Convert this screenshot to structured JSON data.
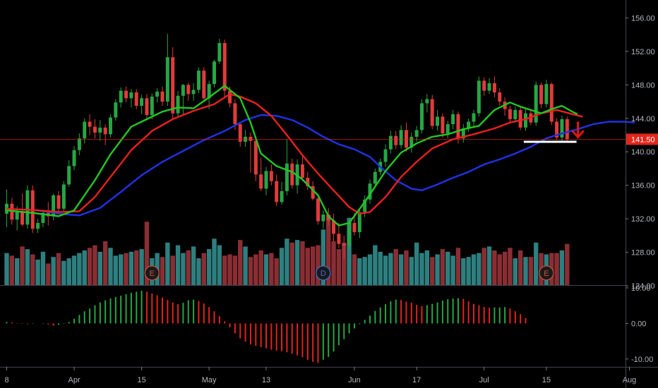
{
  "chart_data": {
    "type": "candlestick",
    "price_axis": {
      "ticks": [
        156,
        152,
        148,
        144,
        140,
        136,
        132,
        128,
        124
      ],
      "tick_labels": [
        "156.00",
        "152.00",
        "148.00",
        "144.00",
        "140.00",
        "136.00",
        "132.00",
        "128.00",
        "124.00"
      ],
      "ylim": [
        124,
        157.3
      ]
    },
    "last_price": {
      "value": 141.5,
      "label": "141.50",
      "color": "#e3261b"
    },
    "oscillator_axis": {
      "ticks": [
        10,
        0,
        -10
      ],
      "tick_labels": [
        "10.00",
        "0.00",
        "-10.00"
      ],
      "ylim": [
        -12.2,
        10.6
      ]
    },
    "x_axis": {
      "labels": [
        "8",
        "Apr",
        "15",
        "May",
        "13",
        "Jun",
        "17",
        "Jul",
        "15",
        "Aug"
      ],
      "label_bar_index": [
        0,
        13,
        26,
        39,
        50,
        67,
        79,
        92,
        104,
        120
      ]
    },
    "grid": false,
    "colors": {
      "up": "#26a643",
      "down": "#e03b3b",
      "vol_up": "#2e7f7f",
      "vol_down": "#8a2e34",
      "ma_fast": "#22c822",
      "ma_mid": "#ee1f1f",
      "ma_slow": "#1f33e6",
      "hist_up": "#26a643",
      "hist_down": "#e3221b",
      "arrow": "#e31717",
      "level_line": "#ffffff"
    },
    "ohlc": [
      [
        132.6,
        135.5,
        131.0,
        133.8
      ],
      [
        133.8,
        134.5,
        131.3,
        131.9
      ],
      [
        131.9,
        133.5,
        130.6,
        132.8
      ],
      [
        132.8,
        135.0,
        131.1,
        131.3
      ],
      [
        131.3,
        136.0,
        130.8,
        135.4
      ],
      [
        135.4,
        136.0,
        130.3,
        130.8
      ],
      [
        130.8,
        132.0,
        130.3,
        131.5
      ],
      [
        131.5,
        133.0,
        131.0,
        132.7
      ],
      [
        132.7,
        134.0,
        131.2,
        132.3
      ],
      [
        132.3,
        135.0,
        131.8,
        134.8
      ],
      [
        134.8,
        135.3,
        132.8,
        133.2
      ],
      [
        133.2,
        136.5,
        132.8,
        136.1
      ],
      [
        136.1,
        139.0,
        135.8,
        138.3
      ],
      [
        138.3,
        140.7,
        137.8,
        140.2
      ],
      [
        140.2,
        142.2,
        139.6,
        141.6
      ],
      [
        141.6,
        144.0,
        141.0,
        143.6
      ],
      [
        143.6,
        144.5,
        142.0,
        143.0
      ],
      [
        143.0,
        143.9,
        141.6,
        142.3
      ],
      [
        142.3,
        143.8,
        141.3,
        142.9
      ],
      [
        142.9,
        143.3,
        140.8,
        142.1
      ],
      [
        142.1,
        144.5,
        141.7,
        144.1
      ],
      [
        144.1,
        146.3,
        143.7,
        145.9
      ],
      [
        145.9,
        147.7,
        145.3,
        147.3
      ],
      [
        147.3,
        147.8,
        145.9,
        146.4
      ],
      [
        146.4,
        147.5,
        145.3,
        147.1
      ],
      [
        147.1,
        147.5,
        145.1,
        145.5
      ],
      [
        145.5,
        146.8,
        144.5,
        146.4
      ],
      [
        146.4,
        146.9,
        144.0,
        144.4
      ],
      [
        144.4,
        147.0,
        143.9,
        146.6
      ],
      [
        146.6,
        147.6,
        145.9,
        147.2
      ],
      [
        147.2,
        147.8,
        145.5,
        146.0
      ],
      [
        146.0,
        154.1,
        145.5,
        151.3
      ],
      [
        151.3,
        152.5,
        144.0,
        144.6
      ],
      [
        144.6,
        147.3,
        144.1,
        146.7
      ],
      [
        146.7,
        148.1,
        144.3,
        148.0
      ],
      [
        148.0,
        148.3,
        146.1,
        146.9
      ],
      [
        146.9,
        148.2,
        146.1,
        147.4
      ],
      [
        147.4,
        150.1,
        147.0,
        149.7
      ],
      [
        149.7,
        150.1,
        146.0,
        146.4
      ],
      [
        146.4,
        148.5,
        145.1,
        148.1
      ],
      [
        148.1,
        151.0,
        147.7,
        150.8
      ],
      [
        150.8,
        153.5,
        150.5,
        153.0
      ],
      [
        153.0,
        153.4,
        146.6,
        147.3
      ],
      [
        147.3,
        147.8,
        145.3,
        145.8
      ],
      [
        145.8,
        146.3,
        142.6,
        143.3
      ],
      [
        143.3,
        143.5,
        140.6,
        141.2
      ],
      [
        141.2,
        142.6,
        140.6,
        141.8
      ],
      [
        141.8,
        142.3,
        137.5,
        141.3
      ],
      [
        141.3,
        141.6,
        136.5,
        137.3
      ],
      [
        137.3,
        139.3,
        135.3,
        135.6
      ],
      [
        135.6,
        138.2,
        134.8,
        137.7
      ],
      [
        137.7,
        138.5,
        136.0,
        136.5
      ],
      [
        136.5,
        137.3,
        133.5,
        134.0
      ],
      [
        134.0,
        136.4,
        133.7,
        135.3
      ],
      [
        135.3,
        141.5,
        134.8,
        138.6
      ],
      [
        138.6,
        139.2,
        135.6,
        136.0
      ],
      [
        136.0,
        139.1,
        135.0,
        138.5
      ],
      [
        138.5,
        139.5,
        136.5,
        136.9
      ],
      [
        136.9,
        137.6,
        135.4,
        135.9
      ],
      [
        135.9,
        136.5,
        134.2,
        134.4
      ],
      [
        134.4,
        135.0,
        131.3,
        131.7
      ],
      [
        131.7,
        133.0,
        130.8,
        132.5
      ],
      [
        132.5,
        133.3,
        131.2,
        131.8
      ],
      [
        131.8,
        132.6,
        129.3,
        130.2
      ],
      [
        130.2,
        131.5,
        128.5,
        129.0
      ],
      [
        129.0,
        130.0,
        127.2,
        128.8
      ],
      [
        128.8,
        132.0,
        128.3,
        131.5
      ],
      [
        131.5,
        132.7,
        130.0,
        130.4
      ],
      [
        130.4,
        133.2,
        129.7,
        132.8
      ],
      [
        132.8,
        134.8,
        132.2,
        134.3
      ],
      [
        134.3,
        136.7,
        133.8,
        136.2
      ],
      [
        136.2,
        138.0,
        135.8,
        137.6
      ],
      [
        137.6,
        139.2,
        137.2,
        138.8
      ],
      [
        138.8,
        140.9,
        138.2,
        140.3
      ],
      [
        140.3,
        142.5,
        139.8,
        141.9
      ],
      [
        141.9,
        142.5,
        140.3,
        140.8
      ],
      [
        140.8,
        143.2,
        140.4,
        142.6
      ],
      [
        142.6,
        143.5,
        140.0,
        140.5
      ],
      [
        140.5,
        142.3,
        139.9,
        141.8
      ],
      [
        141.8,
        143.1,
        141.2,
        142.6
      ],
      [
        142.6,
        146.3,
        142.2,
        145.8
      ],
      [
        145.8,
        146.9,
        144.7,
        146.3
      ],
      [
        146.3,
        146.8,
        142.7,
        143.1
      ],
      [
        143.1,
        145.0,
        142.5,
        144.2
      ],
      [
        144.2,
        144.6,
        141.7,
        142.2
      ],
      [
        142.2,
        143.7,
        141.6,
        143.3
      ],
      [
        143.3,
        145.0,
        142.7,
        144.5
      ],
      [
        144.5,
        144.8,
        141.0,
        141.6
      ],
      [
        141.6,
        143.3,
        141.1,
        142.8
      ],
      [
        142.8,
        144.0,
        142.4,
        143.6
      ],
      [
        143.6,
        145.0,
        143.0,
        144.6
      ],
      [
        144.6,
        149.0,
        144.2,
        148.5
      ],
      [
        148.5,
        148.9,
        146.7,
        147.3
      ],
      [
        147.3,
        148.8,
        146.9,
        148.2
      ],
      [
        148.2,
        149.0,
        146.5,
        147.1
      ],
      [
        147.1,
        147.6,
        145.5,
        146.0
      ],
      [
        146.0,
        146.5,
        144.3,
        145.1
      ],
      [
        145.1,
        145.5,
        143.6,
        143.9
      ],
      [
        143.9,
        145.4,
        143.5,
        145.0
      ],
      [
        145.0,
        145.4,
        142.6,
        142.9
      ],
      [
        142.9,
        145.1,
        142.5,
        144.6
      ],
      [
        144.6,
        145.0,
        143.2,
        143.5
      ],
      [
        143.5,
        148.4,
        143.1,
        148.0
      ],
      [
        148.0,
        148.3,
        145.2,
        145.7
      ],
      [
        145.7,
        148.6,
        145.3,
        148.1
      ],
      [
        148.1,
        148.3,
        143.2,
        143.6
      ],
      [
        143.6,
        144.0,
        141.4,
        141.7
      ],
      [
        141.7,
        144.3,
        141.3,
        143.9
      ],
      [
        143.9,
        144.2,
        141.1,
        141.5
      ]
    ],
    "volume": [
      25,
      23,
      21,
      30,
      28,
      24,
      20,
      26,
      17,
      22,
      25,
      19,
      21,
      23,
      25,
      27,
      29,
      31,
      26,
      34,
      29,
      23,
      24,
      25,
      26,
      27,
      28,
      49,
      21,
      25,
      22,
      33,
      23,
      31,
      25,
      27,
      30,
      21,
      25,
      28,
      36,
      31,
      23,
      24,
      23,
      35,
      30,
      22,
      24,
      27,
      24,
      25,
      21,
      29,
      36,
      33,
      35,
      34,
      29,
      30,
      31,
      43,
      54,
      34,
      28,
      33,
      52,
      24,
      21,
      22,
      24,
      31,
      26,
      23,
      25,
      28,
      24,
      27,
      22,
      33,
      25,
      27,
      22,
      24,
      28,
      26,
      23,
      29,
      21,
      22,
      24,
      25,
      29,
      30,
      27,
      24,
      26,
      29,
      21,
      27,
      22,
      22,
      33,
      25,
      24,
      25,
      25,
      27,
      32
    ],
    "ma_fast": [
      [
        0,
        133.0
      ],
      [
        5,
        132.7
      ],
      [
        10,
        132.3
      ],
      [
        13,
        133.0
      ],
      [
        17,
        136.6
      ],
      [
        20,
        139.7
      ],
      [
        24,
        143.0
      ],
      [
        26,
        143.6
      ],
      [
        30,
        144.8
      ],
      [
        33,
        145.3
      ],
      [
        36,
        145.2
      ],
      [
        39,
        146.5
      ],
      [
        42,
        147.9
      ],
      [
        45,
        146.4
      ],
      [
        47,
        143.5
      ],
      [
        49,
        139.8
      ],
      [
        52,
        138.3
      ],
      [
        55,
        137.6
      ],
      [
        57,
        136.7
      ],
      [
        60,
        134.8
      ],
      [
        62,
        132.3
      ],
      [
        64,
        131.2
      ],
      [
        66,
        131.5
      ],
      [
        69,
        134.0
      ],
      [
        73,
        137.7
      ],
      [
        76,
        139.9
      ],
      [
        79,
        141.0
      ],
      [
        82,
        141.8
      ],
      [
        85,
        142.1
      ],
      [
        88,
        142.7
      ],
      [
        91,
        143.1
      ],
      [
        94,
        145.0
      ],
      [
        97,
        145.9
      ],
      [
        99,
        145.4
      ],
      [
        101,
        145.0
      ],
      [
        103,
        144.6
      ],
      [
        105,
        145.1
      ],
      [
        107,
        145.5
      ],
      [
        109,
        144.8
      ],
      [
        110,
        144.5
      ]
    ],
    "ma_mid": [
      [
        0,
        133.2
      ],
      [
        6,
        133.0
      ],
      [
        10,
        132.8
      ],
      [
        14,
        132.9
      ],
      [
        17,
        134.6
      ],
      [
        20,
        137.0
      ],
      [
        24,
        140.2
      ],
      [
        28,
        142.5
      ],
      [
        32,
        143.9
      ],
      [
        36,
        144.9
      ],
      [
        40,
        145.7
      ],
      [
        43,
        146.9
      ],
      [
        45,
        146.6
      ],
      [
        48,
        145.8
      ],
      [
        51,
        144.3
      ],
      [
        54,
        142.0
      ],
      [
        57,
        139.6
      ],
      [
        60,
        137.4
      ],
      [
        63,
        135.4
      ],
      [
        66,
        133.4
      ],
      [
        68,
        132.6
      ],
      [
        70,
        132.8
      ],
      [
        73,
        134.6
      ],
      [
        76,
        137.0
      ],
      [
        79,
        138.8
      ],
      [
        82,
        140.4
      ],
      [
        86,
        141.5
      ],
      [
        90,
        142.1
      ],
      [
        94,
        142.8
      ],
      [
        97,
        143.5
      ],
      [
        100,
        143.9
      ],
      [
        103,
        144.6
      ],
      [
        106,
        145.0
      ],
      [
        109,
        144.5
      ],
      [
        111,
        144.2
      ]
    ],
    "ma_slow": [
      [
        0,
        133.2
      ],
      [
        6,
        133.0
      ],
      [
        10,
        132.6
      ],
      [
        14,
        132.4
      ],
      [
        18,
        133.3
      ],
      [
        22,
        135.2
      ],
      [
        26,
        137.2
      ],
      [
        30,
        138.8
      ],
      [
        34,
        140.1
      ],
      [
        38,
        141.4
      ],
      [
        42,
        142.5
      ],
      [
        46,
        143.8
      ],
      [
        49,
        144.4
      ],
      [
        52,
        144.3
      ],
      [
        55,
        143.8
      ],
      [
        58,
        142.9
      ],
      [
        61,
        141.8
      ],
      [
        64,
        140.9
      ],
      [
        67,
        140.3
      ],
      [
        70,
        139.4
      ],
      [
        72,
        138.2
      ],
      [
        75,
        136.6
      ],
      [
        78,
        135.6
      ],
      [
        80,
        135.4
      ],
      [
        83,
        136.1
      ],
      [
        86,
        136.9
      ],
      [
        89,
        137.6
      ],
      [
        92,
        138.5
      ],
      [
        95,
        139.1
      ],
      [
        98,
        139.8
      ],
      [
        101,
        140.6
      ],
      [
        104,
        141.6
      ],
      [
        107,
        142.2
      ],
      [
        110,
        142.7
      ],
      [
        113,
        143.3
      ],
      [
        116,
        143.6
      ],
      [
        119,
        143.6
      ],
      [
        121,
        143.5
      ]
    ],
    "histogram": [
      0.4,
      0.3,
      0.1,
      -0.1,
      -0.2,
      -0.1,
      0.0,
      0.1,
      -0.3,
      -0.6,
      -0.4,
      -0.1,
      0.4,
      1.3,
      2.4,
      3.4,
      4.2,
      5.1,
      5.9,
      6.5,
      7.0,
      7.4,
      7.8,
      8.2,
      8.6,
      8.9,
      9.2,
      8.9,
      8.4,
      7.9,
      7.3,
      6.6,
      5.9,
      5.4,
      5.8,
      6.5,
      6.7,
      6.3,
      5.6,
      4.6,
      3.4,
      2.0,
      0.6,
      -1.1,
      -2.8,
      -4.2,
      -5.1,
      -5.9,
      -6.3,
      -6.7,
      -7.0,
      -7.4,
      -7.6,
      -7.8,
      -8.1,
      -8.5,
      -9.0,
      -9.5,
      -10.2,
      -10.8,
      -11.1,
      -10.2,
      -9.4,
      -7.9,
      -6.1,
      -4.4,
      -2.8,
      -1.4,
      -0.2,
      1.0,
      2.2,
      3.5,
      4.5,
      5.4,
      6.2,
      6.7,
      6.6,
      6.1,
      5.8,
      5.2,
      4.9,
      5.1,
      5.5,
      5.9,
      6.4,
      6.8,
      7.0,
      7.1,
      6.9,
      6.2,
      5.5,
      5.1,
      4.6,
      4.4,
      4.5,
      4.5,
      4.6,
      4.2,
      3.4,
      2.6,
      1.5
    ],
    "event_markers": [
      {
        "label": "E",
        "bar_index": 28,
        "color": "#c9523d"
      },
      {
        "label": "D",
        "bar_index": 61,
        "color": "#3b6fd6"
      },
      {
        "label": "E",
        "bar_index": 104,
        "color": "#c9523d"
      }
    ],
    "annotations": {
      "support_line": {
        "price": 141.2,
        "from_bar": 101,
        "to_bar": 106
      },
      "down_arrow": {
        "bar_index": 107.5,
        "price": 142.6
      }
    }
  }
}
